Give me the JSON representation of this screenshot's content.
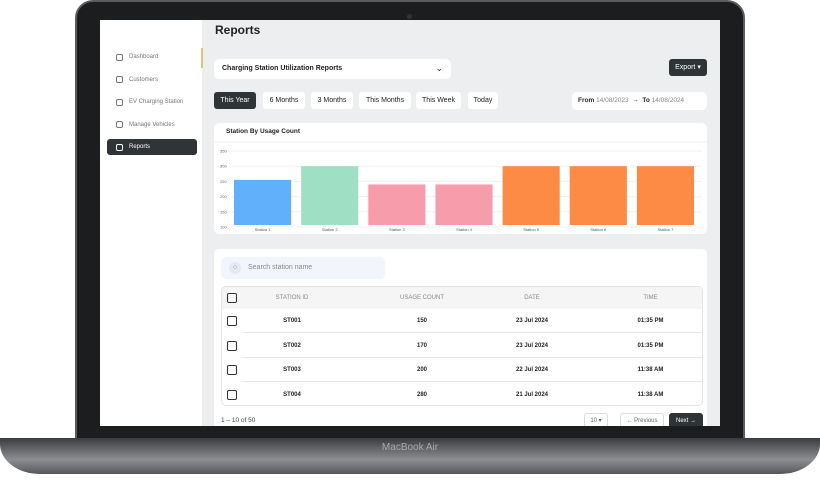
{
  "device": {
    "label": "MacBook Air"
  },
  "page": {
    "title": "Reports"
  },
  "sidebar": {
    "items": [
      {
        "label": "Dashboard",
        "icon": "grid-icon"
      },
      {
        "label": "Customers",
        "icon": "users-icon"
      },
      {
        "label": "EV Charging Station",
        "icon": "charging-station-icon"
      },
      {
        "label": "Manage Vehicles",
        "icon": "car-icon"
      },
      {
        "label": "Reports",
        "icon": "report-icon",
        "active": true
      }
    ]
  },
  "report_select": {
    "value": "Charging Station Utilization Reports"
  },
  "export": {
    "label": "Export ▾"
  },
  "tabs": [
    {
      "label": "This Year",
      "active": true
    },
    {
      "label": "6 Months"
    },
    {
      "label": "3 Months"
    },
    {
      "label": "This Months"
    },
    {
      "label": "This Week"
    },
    {
      "label": "Today"
    }
  ],
  "range": {
    "from_label": "From",
    "from": "14/08/2023",
    "arrow": "→",
    "to_label": "To",
    "to": "14/08/2024"
  },
  "chart_data": {
    "type": "bar",
    "title": "Station By Usage Count",
    "categories": [
      "Station 1",
      "Station 2",
      "Station 3",
      "Station 4",
      "Station 5",
      "Station 6",
      "Station 7"
    ],
    "values": [
      255,
      300,
      240,
      240,
      300,
      300,
      300
    ],
    "colors": [
      "#60b0fc",
      "#9fdfc4",
      "#f79cab",
      "#f79cab",
      "#fd8a45",
      "#fd8a45",
      "#fd8a45"
    ],
    "yticks": [
      100,
      150,
      200,
      250,
      300,
      350
    ],
    "ylim": [
      100,
      350
    ],
    "grid": true
  },
  "table": {
    "search_placeholder": "Search station name",
    "columns": [
      "STATION ID",
      "USAGE COUNT",
      "DATE",
      "TIME"
    ],
    "rows": [
      [
        "ST001",
        "150",
        "23 Jul 2024",
        "01:35 PM"
      ],
      [
        "ST002",
        "170",
        "23 Jul 2024",
        "01:35 PM"
      ],
      [
        "ST003",
        "200",
        "22 Jul 2024",
        "11:38 AM"
      ],
      [
        "ST004",
        "280",
        "21 Jul 2024",
        "11:38 AM"
      ]
    ],
    "pagination": {
      "summary": "1 – 10 of 50",
      "per_page": "10 ▾",
      "prev": "← Previous",
      "next": "Next →"
    }
  }
}
